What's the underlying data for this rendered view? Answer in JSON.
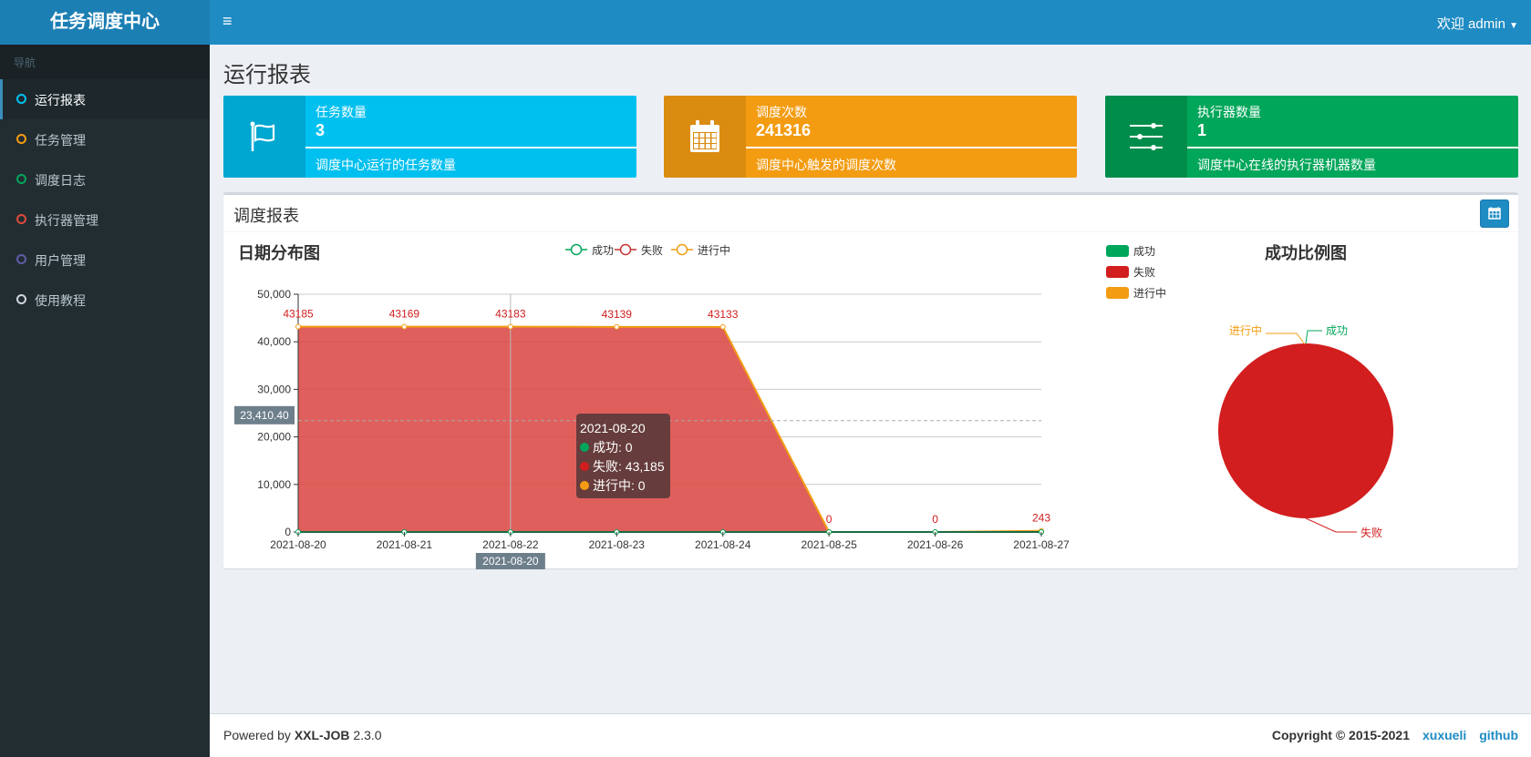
{
  "app": {
    "logo": "任务调度中心",
    "user": "欢迎 admin",
    "menu_icon": "≡"
  },
  "sidebar": {
    "header": "导航",
    "items": [
      {
        "label": "运行报表",
        "color": "#00c0ef",
        "active": true
      },
      {
        "label": "任务管理",
        "color": "#f39c12"
      },
      {
        "label": "调度日志",
        "color": "#00a65a"
      },
      {
        "label": "执行器管理",
        "color": "#dd4b39"
      },
      {
        "label": "用户管理",
        "color": "#605ca8"
      },
      {
        "label": "使用教程",
        "color": "#d2d6de"
      }
    ]
  },
  "page": {
    "title": "运行报表"
  },
  "stats": [
    {
      "label": "任务数量",
      "value": "3",
      "desc": "调度中心运行的任务数量",
      "icon": "flag-icon",
      "color": "#00c0ef",
      "icon_bg": "#00a7d0"
    },
    {
      "label": "调度次数",
      "value": "241316",
      "desc": "调度中心触发的调度次数",
      "icon": "calendar-icon",
      "color": "#f39c12",
      "icon_bg": "#da8c10"
    },
    {
      "label": "执行器数量",
      "value": "1",
      "desc": "调度中心在线的执行器机器数量",
      "icon": "sliders-icon",
      "color": "#00a65a",
      "icon_bg": "#008d4c"
    }
  ],
  "panel": {
    "title": "调度报表",
    "date_button_icon": "calendar-icon"
  },
  "chart_data": [
    {
      "type": "area",
      "title": "日期分布图",
      "legend_position": "top",
      "ylim": [
        0,
        50000
      ],
      "yticks": [
        "0",
        "10,000",
        "20,000",
        "30,000",
        "40,000",
        "50,000"
      ],
      "categories": [
        "2021-08-20",
        "2021-08-21",
        "2021-08-22",
        "2021-08-23",
        "2021-08-24",
        "2021-08-25",
        "2021-08-26",
        "2021-08-27"
      ],
      "series": [
        {
          "name": "成功",
          "color": "#00a65a",
          "values": [
            0,
            0,
            0,
            0,
            0,
            0,
            0,
            0
          ]
        },
        {
          "name": "失败",
          "color": "#c23531",
          "values": [
            43185,
            43169,
            43183,
            43139,
            43133,
            0,
            0,
            243
          ]
        },
        {
          "name": "进行中",
          "color": "#f39c12",
          "values": [
            0,
            0,
            0,
            0,
            0,
            0,
            0,
            0
          ]
        }
      ],
      "axis_pointer": {
        "y_label": "23,410.40",
        "x_label": "2021-08-20"
      },
      "tooltip": {
        "date": "2021-08-20",
        "lines": [
          "成功: 0",
          "失败: 43,185",
          "进行中: 0"
        ]
      }
    },
    {
      "type": "pie",
      "title": "成功比例图",
      "legend_position": "top-left",
      "slices": [
        {
          "name": "成功",
          "value": 0,
          "color": "#00a65a"
        },
        {
          "name": "失败",
          "value": 216052,
          "color": "#d21e1e"
        },
        {
          "name": "进行中",
          "value": 0,
          "color": "#f39c12"
        }
      ]
    }
  ],
  "footer": {
    "powered": "Powered by ",
    "brand": "XXL-JOB",
    "version": " 2.3.0",
    "copyright": "Copyright © 2015-2021",
    "links": [
      "xuxueli",
      "github"
    ]
  }
}
